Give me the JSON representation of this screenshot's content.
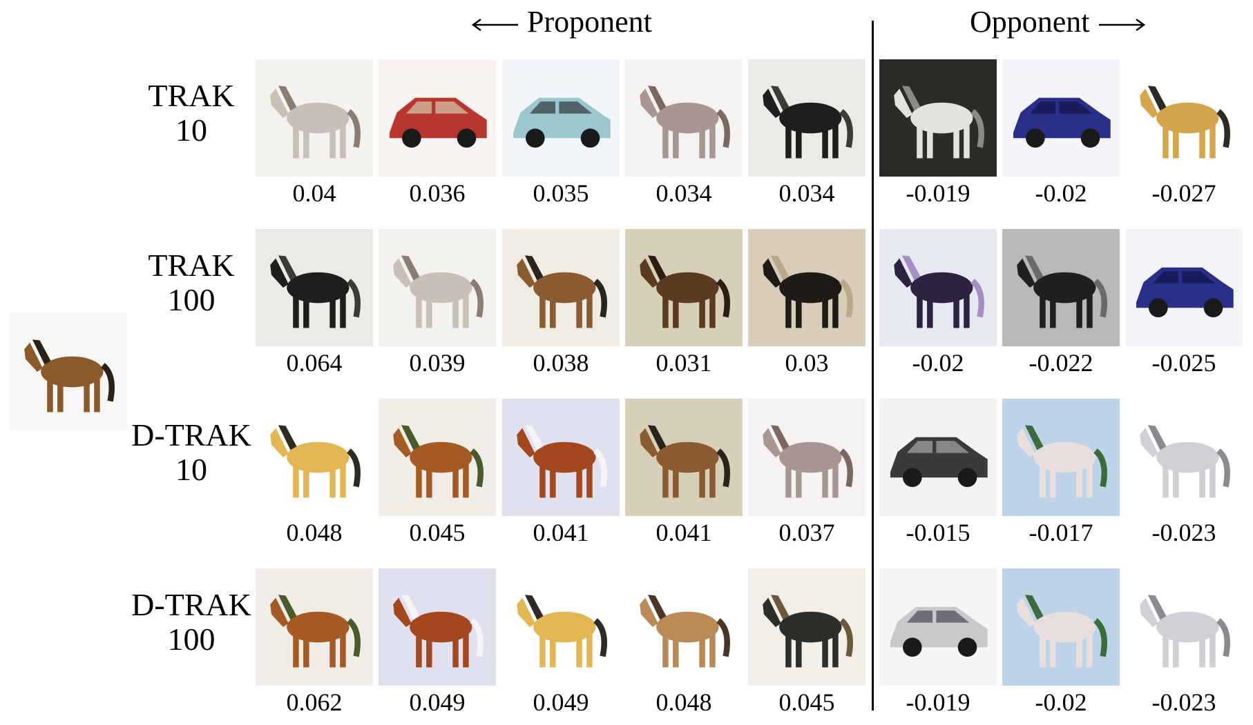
{
  "headers": {
    "proponent": "Proponent",
    "opponent": "Opponent"
  },
  "rows": [
    {
      "label_line1": "TRAK",
      "label_line2": "10",
      "proponents": [
        {
          "score": "0.04",
          "subject": "horse",
          "palette": [
            "#f4f2ef",
            "#c8bfb6",
            "#8a7e74"
          ]
        },
        {
          "score": "0.036",
          "subject": "car",
          "palette": [
            "#f7f4f2",
            "#b9362f",
            "#d2b89e"
          ]
        },
        {
          "score": "0.035",
          "subject": "car",
          "palette": [
            "#f3f6f8",
            "#9cc7cf",
            "#3f4a4d"
          ]
        },
        {
          "score": "0.034",
          "subject": "horse",
          "palette": [
            "#f5f3f1",
            "#a89790",
            "#7b6862"
          ]
        },
        {
          "score": "0.034",
          "subject": "horse",
          "palette": [
            "#e9ebe6",
            "#1d1f1c",
            "#3a3b36"
          ]
        }
      ],
      "opponents": [
        {
          "score": "-0.019",
          "subject": "horse",
          "palette": [
            "#2b2b27",
            "#e4e2dc",
            "#8c8a84"
          ]
        },
        {
          "score": "-0.02",
          "subject": "car",
          "palette": [
            "#f4f5f8",
            "#2a2f8a",
            "#141851"
          ]
        },
        {
          "score": "-0.027",
          "subject": "horse",
          "palette": [
            "#ffffff",
            "#d4a54a",
            "#2e2a24"
          ]
        }
      ]
    },
    {
      "label_line1": "TRAK",
      "label_line2": "100",
      "proponents": [
        {
          "score": "0.064",
          "subject": "horse",
          "palette": [
            "#e9ebe6",
            "#1d1f1c",
            "#3a3b36"
          ]
        },
        {
          "score": "0.039",
          "subject": "horse",
          "palette": [
            "#f4f2ef",
            "#c8bfb6",
            "#8a7e74"
          ]
        },
        {
          "score": "0.038",
          "subject": "horse",
          "palette": [
            "#f0ece3",
            "#8a5a30",
            "#2b241c"
          ]
        },
        {
          "score": "0.031",
          "subject": "horse",
          "palette": [
            "#d8cfb8",
            "#5a3b1f",
            "#2a1d12"
          ]
        },
        {
          "score": "0.03",
          "subject": "horse",
          "palette": [
            "#d7cdb9",
            "#1e1a16",
            "#b9a98a"
          ]
        }
      ],
      "opponents": [
        {
          "score": "-0.02",
          "subject": "horse",
          "palette": [
            "#e6eaf0",
            "#2b2340",
            "#a58ec3"
          ]
        },
        {
          "score": "-0.022",
          "subject": "horse",
          "palette": [
            "#b9b9b9",
            "#202020",
            "#6a6a6a"
          ]
        },
        {
          "score": "-0.025",
          "subject": "car",
          "palette": [
            "#f4f5f8",
            "#2a2f8a",
            "#141851"
          ]
        }
      ]
    },
    {
      "label_line1": "D-TRAK",
      "label_line2": "10",
      "proponents": [
        {
          "score": "0.048",
          "subject": "horse",
          "palette": [
            "#ffffff",
            "#e2b653",
            "#2e2a24"
          ]
        },
        {
          "score": "0.045",
          "subject": "horse",
          "palette": [
            "#f0ede7",
            "#a45a22",
            "#4a5a2a"
          ]
        },
        {
          "score": "0.041",
          "subject": "horse",
          "palette": [
            "#dfe2ee",
            "#a3481e",
            "#f3f3f8"
          ]
        },
        {
          "score": "0.041",
          "subject": "horse",
          "palette": [
            "#d8cfb8",
            "#8a5a30",
            "#2b241c"
          ]
        },
        {
          "score": "0.037",
          "subject": "horse",
          "palette": [
            "#f5f3f1",
            "#a89790",
            "#7b6862"
          ]
        }
      ],
      "opponents": [
        {
          "score": "-0.015",
          "subject": "car",
          "palette": [
            "#f2f2f2",
            "#3a3a3a",
            "#9a9a9a"
          ]
        },
        {
          "score": "-0.017",
          "subject": "horse",
          "palette": [
            "#bcd3e8",
            "#e8dedc",
            "#3a6b3a"
          ]
        },
        {
          "score": "-0.023",
          "subject": "horse",
          "palette": [
            "#ffffff",
            "#cfcfd4",
            "#8a8a90"
          ]
        }
      ]
    },
    {
      "label_line1": "D-TRAK",
      "label_line2": "100",
      "proponents": [
        {
          "score": "0.062",
          "subject": "horse",
          "palette": [
            "#f0ede7",
            "#a45a22",
            "#4a5a2a"
          ]
        },
        {
          "score": "0.049",
          "subject": "horse",
          "palette": [
            "#dfe2ee",
            "#a3481e",
            "#f3f3f8"
          ]
        },
        {
          "score": "0.049",
          "subject": "horse",
          "palette": [
            "#ffffff",
            "#e2b653",
            "#2e2a24"
          ]
        },
        {
          "score": "0.048",
          "subject": "horse",
          "palette": [
            "#ffffff",
            "#b98a55",
            "#4a3525"
          ]
        },
        {
          "score": "0.045",
          "subject": "horse",
          "palette": [
            "#f1efe8",
            "#2c2e28",
            "#6a5a3a"
          ]
        }
      ],
      "opponents": [
        {
          "score": "-0.019",
          "subject": "car",
          "palette": [
            "#f5f5f5",
            "#c9c9cc",
            "#5a5a5e"
          ]
        },
        {
          "score": "-0.02",
          "subject": "horse",
          "palette": [
            "#bcd3e8",
            "#e8dedc",
            "#3a6b3a"
          ]
        },
        {
          "score": "-0.023",
          "subject": "horse",
          "palette": [
            "#ffffff",
            "#cfcfd4",
            "#8a8a90"
          ]
        }
      ]
    }
  ],
  "query": {
    "subject": "horse",
    "palette": [
      "#f6f6f4",
      "#8a5a2a",
      "#2a2118"
    ]
  }
}
